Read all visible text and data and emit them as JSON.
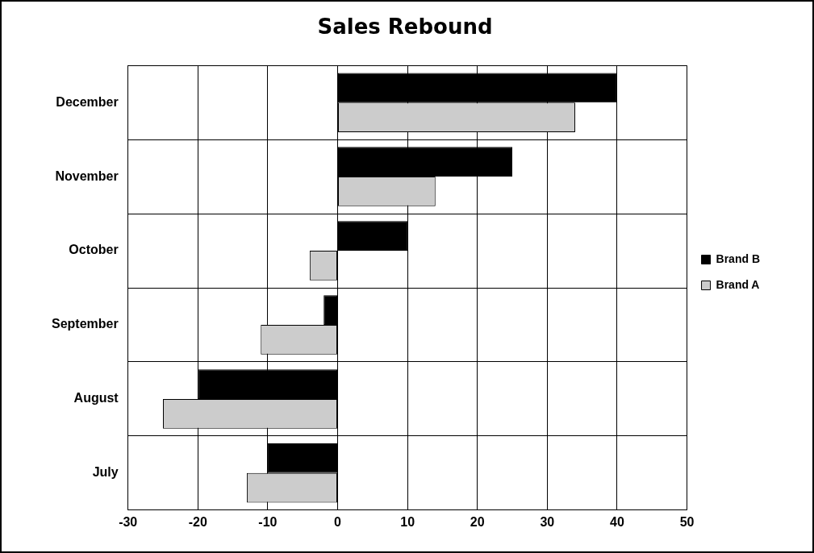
{
  "chart_data": {
    "type": "bar",
    "orientation": "horizontal",
    "title": "Sales Rebound",
    "categories": [
      "December",
      "November",
      "October",
      "September",
      "August",
      "July"
    ],
    "series": [
      {
        "name": "Brand B",
        "color": "#000000",
        "values": [
          40,
          25,
          10,
          -2,
          -20,
          -10
        ]
      },
      {
        "name": "Brand A",
        "color": "#cccccc",
        "values": [
          34,
          14,
          -4,
          -11,
          -25,
          -13
        ]
      }
    ],
    "xlim": [
      -30,
      50
    ],
    "xticks": [
      -30,
      -20,
      -10,
      0,
      10,
      20,
      30,
      40,
      50
    ],
    "grid": true,
    "legend": "right"
  }
}
